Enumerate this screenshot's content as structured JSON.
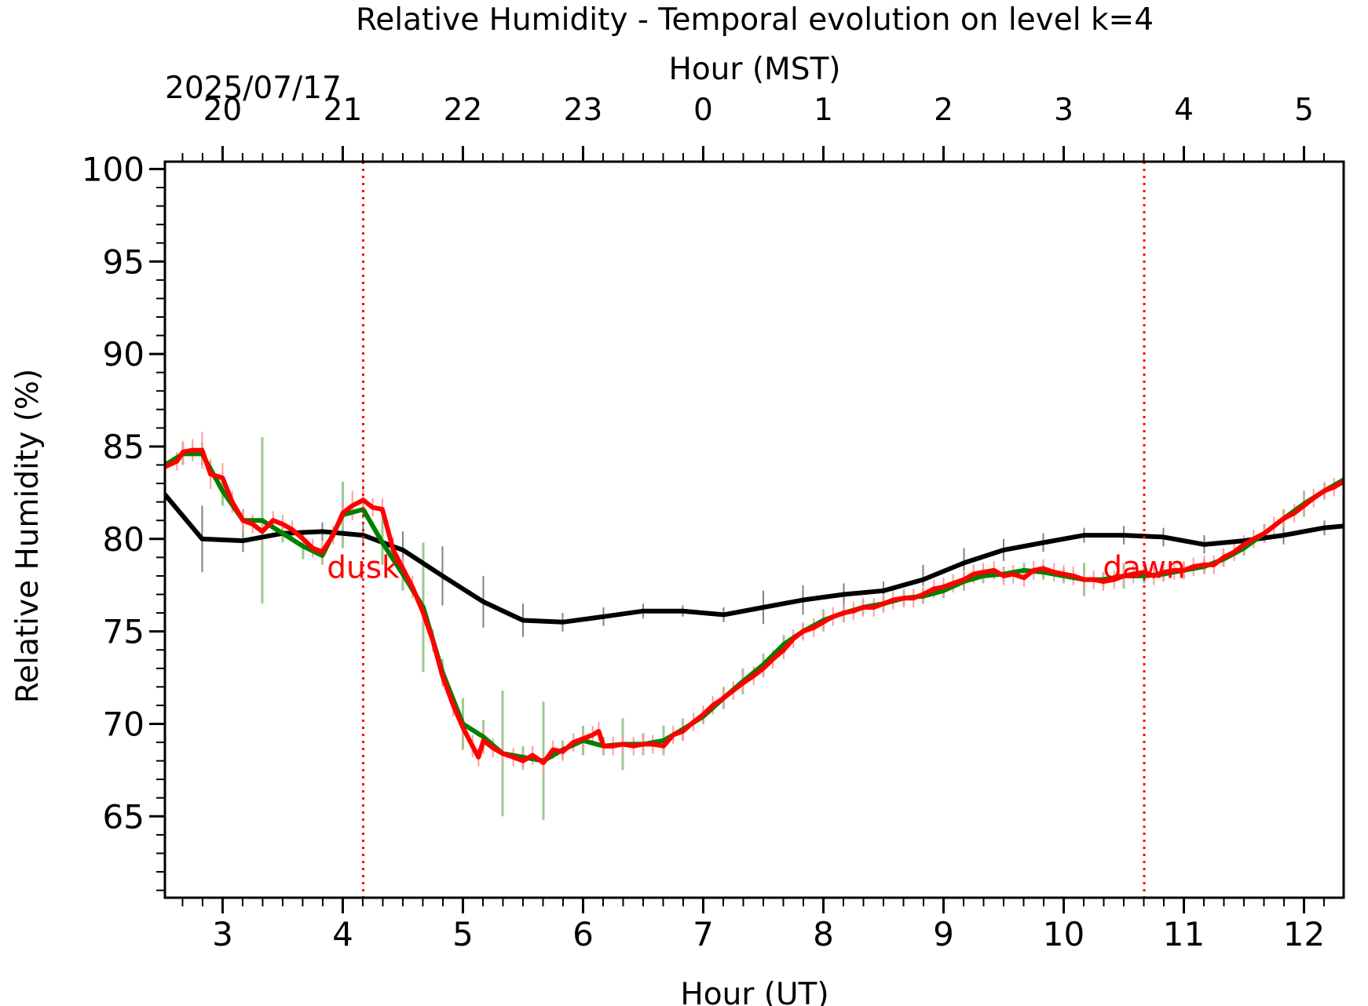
{
  "chart_data": {
    "type": "line",
    "title": "Relative Humidity - Temporal evolution on level k=4",
    "xlabel": "Hour (UT)",
    "x2label": "Hour (MST)",
    "ylabel": "Relative Humidity (%)",
    "date_label": "2025/07/17",
    "xlim": [
      2.52,
      12.33
    ],
    "ylim": [
      60.6,
      100.4
    ],
    "x_ticks": [
      3,
      4,
      5,
      6,
      7,
      8,
      9,
      10,
      11,
      12
    ],
    "x_tick_labels": [
      "3",
      "4",
      "5",
      "6",
      "7",
      "8",
      "9",
      "10",
      "11",
      "12"
    ],
    "y_ticks": [
      65,
      70,
      75,
      80,
      85,
      90,
      95,
      100
    ],
    "y_tick_labels": [
      "65",
      "70",
      "75",
      "80",
      "85",
      "90",
      "95",
      "100"
    ],
    "top_ticks_ut": [
      3,
      4,
      5,
      6,
      7,
      8,
      9,
      10,
      11,
      12
    ],
    "top_tick_labels": [
      "20",
      "21",
      "22",
      "23",
      "0",
      "1",
      "2",
      "3",
      "4",
      "5"
    ],
    "dusk": {
      "x": 4.17,
      "label": "dusk"
    },
    "dawn": {
      "x": 10.67,
      "label": "dawn"
    },
    "colors": {
      "red": "#ff0000",
      "green": "#008000",
      "black": "#000000",
      "light_green": "#9dc98f",
      "grey": "#808080",
      "light_red": "#ff9a9a"
    },
    "series": [
      {
        "color": "#000000",
        "x": [
          2.52,
          2.83,
          3.17,
          3.5,
          3.83,
          4.17,
          4.5,
          4.83,
          5.17,
          5.5,
          5.83,
          6.17,
          6.5,
          6.83,
          7.17,
          7.5,
          7.83,
          8.17,
          8.5,
          8.83,
          9.17,
          9.5,
          9.83,
          10.17,
          10.5,
          10.83,
          11.17,
          11.5,
          11.83,
          12.17,
          12.33
        ],
        "y": [
          82.4,
          80.0,
          79.9,
          80.3,
          80.4,
          80.2,
          79.4,
          78.0,
          76.6,
          75.6,
          75.5,
          75.8,
          76.1,
          76.1,
          75.9,
          76.3,
          76.7,
          77.0,
          77.2,
          77.8,
          78.7,
          79.4,
          79.8,
          80.2,
          80.2,
          80.1,
          79.7,
          79.9,
          80.2,
          80.6,
          80.7
        ],
        "err": [
          0,
          1.8,
          0.6,
          0.5,
          0.5,
          0.6,
          1.0,
          1.6,
          1.4,
          0.9,
          0.5,
          0.5,
          0.4,
          0.3,
          0.4,
          0.9,
          0.8,
          0.6,
          0.5,
          0.8,
          0.8,
          0.6,
          0.5,
          0.4,
          0.5,
          0.5,
          0.5,
          0.3,
          0.5,
          0.4,
          0
        ]
      },
      {
        "color": "#008000",
        "x": [
          2.52,
          2.67,
          2.83,
          3.0,
          3.17,
          3.33,
          3.5,
          3.67,
          3.83,
          4.0,
          4.17,
          4.33,
          4.5,
          4.67,
          4.83,
          5.0,
          5.17,
          5.33,
          5.5,
          5.67,
          5.83,
          6.0,
          6.17,
          6.33,
          6.5,
          6.67,
          6.83,
          7.0,
          7.17,
          7.33,
          7.5,
          7.67,
          7.83,
          8.0,
          8.17,
          8.33,
          8.5,
          8.67,
          8.83,
          9.0,
          9.17,
          9.33,
          9.5,
          9.67,
          9.83,
          10.0,
          10.17,
          10.33,
          10.5,
          10.67,
          10.83,
          11.0,
          11.17,
          11.33,
          11.5,
          11.67,
          11.83,
          12.0,
          12.17,
          12.33
        ],
        "y": [
          84.0,
          84.6,
          84.6,
          82.6,
          81.0,
          81.0,
          80.3,
          79.6,
          79.1,
          81.3,
          81.6,
          79.8,
          78.1,
          76.3,
          72.8,
          70.0,
          69.3,
          68.4,
          68.2,
          68.0,
          68.6,
          69.1,
          68.8,
          68.9,
          68.9,
          69.1,
          69.7,
          70.4,
          71.4,
          72.3,
          73.2,
          74.3,
          75.0,
          75.6,
          76.0,
          76.3,
          76.5,
          76.8,
          76.9,
          77.2,
          77.7,
          78.0,
          78.1,
          78.3,
          78.2,
          78.0,
          77.8,
          77.8,
          78.0,
          78.0,
          78.1,
          78.3,
          78.5,
          78.9,
          79.5,
          80.3,
          81.1,
          81.9,
          82.6,
          83.2
        ],
        "err": [
          0,
          0.6,
          0.6,
          0.8,
          0.6,
          4.5,
          0.5,
          0.7,
          0.5,
          1.8,
          0.5,
          1.2,
          0.9,
          3.5,
          0.7,
          1.4,
          0.9,
          3.4,
          0.6,
          3.2,
          0.5,
          0.8,
          0.5,
          1.4,
          0.6,
          0.8,
          0.6,
          0.4,
          0.6,
          0.7,
          0.6,
          0.5,
          0.4,
          0.6,
          0.5,
          0.4,
          0.4,
          0.4,
          0.4,
          0.4,
          0.5,
          0.4,
          0.4,
          0.4,
          0.4,
          0.4,
          0.9,
          0.4,
          0.7,
          0.4,
          0.4,
          0.4,
          0.4,
          0.4,
          0.4,
          0.5,
          0.5,
          0.7,
          0.4,
          0
        ]
      },
      {
        "color": "#ff0000",
        "x": [
          2.52,
          2.62,
          2.67,
          2.75,
          2.83,
          2.9,
          3.0,
          3.08,
          3.17,
          3.25,
          3.33,
          3.42,
          3.5,
          3.58,
          3.67,
          3.75,
          3.83,
          3.92,
          4.0,
          4.08,
          4.17,
          4.25,
          4.33,
          4.42,
          4.5,
          4.58,
          4.67,
          4.75,
          4.83,
          4.92,
          5.0,
          5.08,
          5.13,
          5.17,
          5.25,
          5.33,
          5.42,
          5.5,
          5.58,
          5.67,
          5.75,
          5.83,
          5.92,
          6.0,
          6.08,
          6.13,
          6.17,
          6.25,
          6.33,
          6.42,
          6.5,
          6.58,
          6.67,
          6.75,
          6.83,
          6.92,
          7.0,
          7.08,
          7.17,
          7.25,
          7.33,
          7.42,
          7.5,
          7.58,
          7.67,
          7.75,
          7.83,
          7.92,
          8.0,
          8.08,
          8.17,
          8.25,
          8.33,
          8.42,
          8.5,
          8.58,
          8.67,
          8.75,
          8.83,
          8.92,
          9.0,
          9.08,
          9.17,
          9.25,
          9.33,
          9.42,
          9.5,
          9.58,
          9.67,
          9.75,
          9.83,
          9.92,
          10.0,
          10.08,
          10.17,
          10.25,
          10.33,
          10.42,
          10.5,
          10.58,
          10.67,
          10.75,
          10.83,
          10.92,
          11.0,
          11.08,
          11.17,
          11.25,
          11.33,
          11.42,
          11.5,
          11.58,
          11.67,
          11.75,
          11.83,
          11.92,
          12.0,
          12.08,
          12.17,
          12.25,
          12.33
        ],
        "y": [
          83.9,
          84.2,
          84.7,
          84.8,
          84.8,
          83.5,
          83.3,
          82.0,
          81.0,
          80.8,
          80.4,
          81.0,
          80.8,
          80.5,
          80.0,
          79.5,
          79.3,
          80.2,
          81.4,
          81.8,
          82.1,
          81.7,
          81.6,
          79.4,
          78.4,
          77.4,
          76.0,
          74.5,
          72.6,
          71.0,
          69.8,
          68.8,
          68.2,
          69.1,
          68.7,
          68.4,
          68.2,
          68.0,
          68.3,
          67.9,
          68.6,
          68.5,
          69.0,
          69.2,
          69.4,
          69.6,
          68.8,
          68.8,
          68.9,
          68.8,
          68.9,
          68.9,
          68.8,
          69.4,
          69.6,
          70.1,
          70.5,
          71.0,
          71.4,
          71.8,
          72.2,
          72.6,
          73.0,
          73.5,
          74.0,
          74.6,
          75.0,
          75.2,
          75.5,
          75.8,
          76.0,
          76.1,
          76.3,
          76.3,
          76.5,
          76.7,
          76.8,
          76.8,
          77.0,
          77.3,
          77.4,
          77.6,
          77.8,
          78.1,
          78.2,
          78.3,
          78.0,
          78.1,
          77.9,
          78.3,
          78.4,
          78.2,
          78.1,
          78.0,
          77.8,
          77.8,
          77.7,
          77.8,
          78.0,
          78.1,
          78.2,
          78.0,
          78.2,
          78.3,
          78.3,
          78.5,
          78.6,
          78.6,
          79.0,
          79.3,
          79.7,
          80.0,
          80.3,
          80.7,
          81.1,
          81.4,
          81.8,
          82.2,
          82.6,
          82.8,
          83.1
        ],
        "err": [
          0,
          0.5,
          0.6,
          0.6,
          1.0,
          0.8,
          0.8,
          0.6,
          0.6,
          0.5,
          0.5,
          0.5,
          0.5,
          0.5,
          0.5,
          0.5,
          0.6,
          0.5,
          0.6,
          0.8,
          0.8,
          0.5,
          0.6,
          0.7,
          0.6,
          0.6,
          0.6,
          0.6,
          0.6,
          0.6,
          0.6,
          0.6,
          0.5,
          0.7,
          0.5,
          0.5,
          0.5,
          0.5,
          0.5,
          0.5,
          0.5,
          0.5,
          0.5,
          0.5,
          0.5,
          0.5,
          0.5,
          0.5,
          0.5,
          0.5,
          0.5,
          0.5,
          0.5,
          0.5,
          0.5,
          0.5,
          0.5,
          0.5,
          0.5,
          0.5,
          0.5,
          0.5,
          0.5,
          0.5,
          0.5,
          0.5,
          0.5,
          0.5,
          0.5,
          0.5,
          0.5,
          0.5,
          0.5,
          0.5,
          0.5,
          0.5,
          0.5,
          0.5,
          0.5,
          0.5,
          0.5,
          0.5,
          0.5,
          0.5,
          0.5,
          0.5,
          0.5,
          0.5,
          0.5,
          0.5,
          0.5,
          0.5,
          0.5,
          0.5,
          0.5,
          0.5,
          0.5,
          0.5,
          0.5,
          0.5,
          0.5,
          0.5,
          0.5,
          0.5,
          0.5,
          0.5,
          0.5,
          0.5,
          0.5,
          0.5,
          0.5,
          0.5,
          0.5,
          0.5,
          0.5,
          0.5,
          0.5,
          0.5,
          0.5,
          0.5,
          0
        ]
      }
    ]
  }
}
